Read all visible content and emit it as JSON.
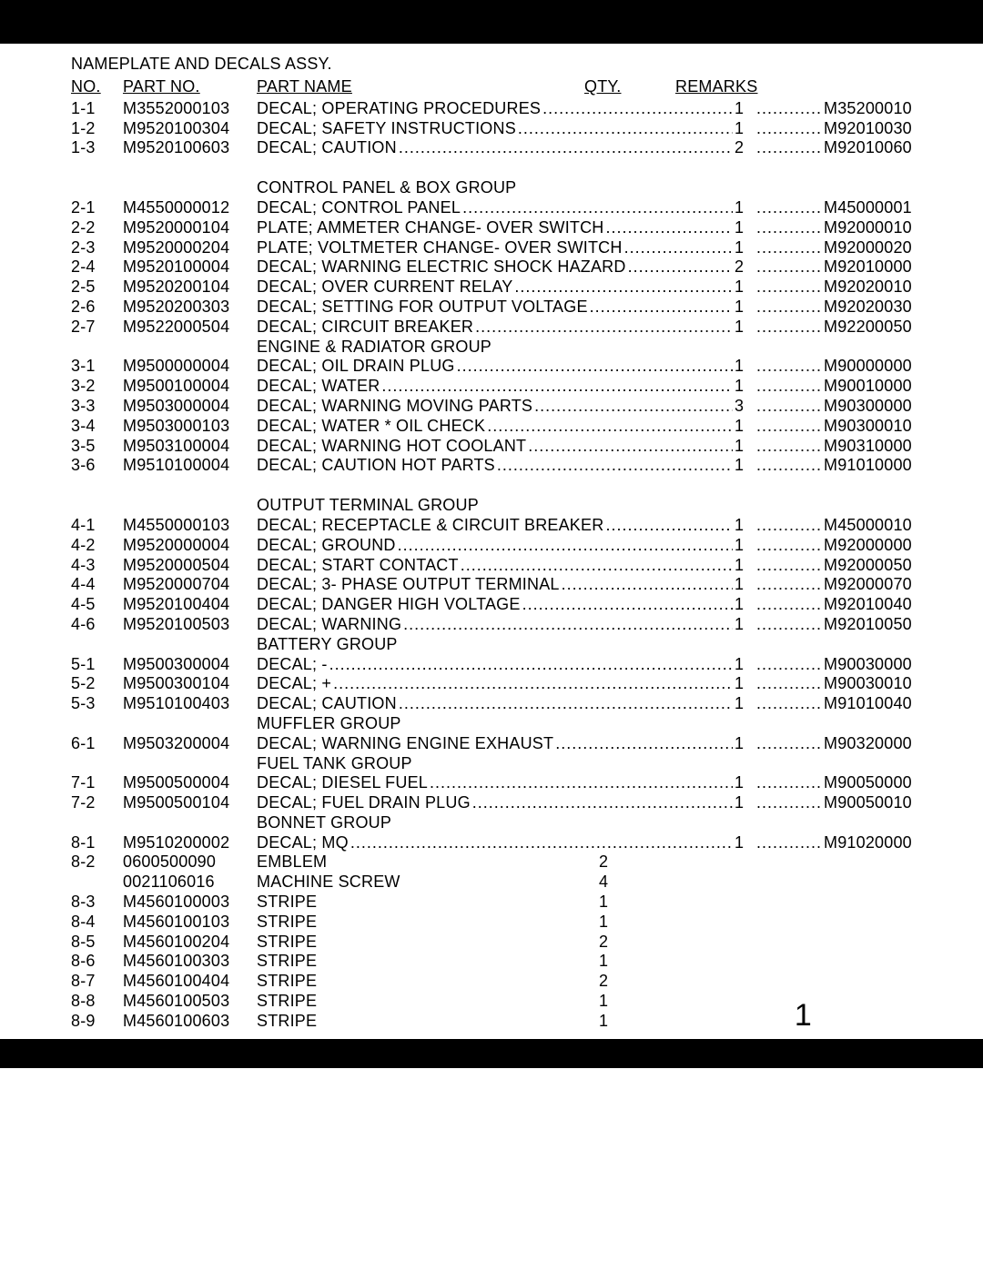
{
  "page_number": "1",
  "assembly_title": "NAMEPLATE AND DECALS ASSY.",
  "headers": {
    "no": "NO.",
    "part_no": "PART NO.",
    "part_name": "PART NAME",
    "qty": "QTY.",
    "remarks": "REMARKS"
  },
  "dot_fill": "...........................................................................................................",
  "sections": [
    {
      "group_title": null,
      "rows": [
        {
          "no": "1-1",
          "part": "M3552000103",
          "name": "DECAL; OPERATING PROCEDURES",
          "qty": "1",
          "remarks": "M35200010"
        },
        {
          "no": "1-2",
          "part": "M9520100304",
          "name": "DECAL; SAFETY INSTRUCTIONS",
          "qty": "1",
          "remarks": "M92010030"
        },
        {
          "no": "1-3",
          "part": "M9520100603",
          "name": "DECAL; CAUTION",
          "qty": "2",
          "remarks": "M92010060"
        }
      ],
      "trailing_space": true
    },
    {
      "group_title": "CONTROL PANEL & BOX GROUP",
      "rows": [
        {
          "no": "2-1",
          "part": "M4550000012",
          "name": "DECAL; CONTROL PANEL",
          "qty": "1",
          "remarks": "M45000001"
        },
        {
          "no": "2-2",
          "part": "M9520000104",
          "name": "PLATE; AMMETER CHANGE- OVER SWITCH",
          "qty": "1",
          "remarks": "M92000010"
        },
        {
          "no": "2-3",
          "part": "M9520000204",
          "name": "PLATE; VOLTMETER CHANGE- OVER SWITCH",
          "qty": "1",
          "remarks": "M92000020"
        },
        {
          "no": "2-4",
          "part": "M9520100004",
          "name": "DECAL; WARNING ELECTRIC SHOCK HAZARD",
          "qty": "2",
          "remarks": "M92010000"
        },
        {
          "no": "2-5",
          "part": "M9520200104",
          "name": "DECAL; OVER CURRENT RELAY",
          "qty": "1",
          "remarks": "M92020010"
        },
        {
          "no": "2-6",
          "part": "M9520200303",
          "name": "DECAL; SETTING FOR OUTPUT VOLTAGE",
          "qty": "1",
          "remarks": "M92020030"
        },
        {
          "no": "2-7",
          "part": "M9522000504",
          "name": "DECAL; CIRCUIT BREAKER",
          "qty": "1",
          "remarks": "M92200050"
        }
      ]
    },
    {
      "group_title": "ENGINE & RADIATOR GROUP",
      "rows": [
        {
          "no": "3-1",
          "part": "M9500000004",
          "name": "DECAL; OIL DRAIN PLUG",
          "qty": "1",
          "remarks": "M90000000"
        },
        {
          "no": "3-2",
          "part": "M9500100004",
          "name": "DECAL; WATER",
          "qty": "1",
          "remarks": "M90010000"
        },
        {
          "no": "3-3",
          "part": "M9503000004",
          "name": "DECAL; WARNING MOVING PARTS",
          "qty": "3",
          "remarks": "M90300000"
        },
        {
          "no": "3-4",
          "part": "M9503000103",
          "name": "DECAL; WATER * OIL CHECK",
          "qty": "1",
          "remarks": "M90300010"
        },
        {
          "no": "3-5",
          "part": "M9503100004",
          "name": "DECAL; WARNING HOT COOLANT",
          "qty": "1",
          "remarks": "M90310000"
        },
        {
          "no": "3-6",
          "part": "M9510100004",
          "name": "DECAL; CAUTION HOT PARTS",
          "qty": "1",
          "remarks": "M91010000"
        }
      ],
      "trailing_space": true
    },
    {
      "group_title": "OUTPUT TERMINAL GROUP",
      "rows": [
        {
          "no": "4-1",
          "part": "M4550000103",
          "name": "DECAL; RECEPTACLE & CIRCUIT BREAKER",
          "qty": "1",
          "remarks": "M45000010"
        },
        {
          "no": "4-2",
          "part": "M9520000004",
          "name": "DECAL; GROUND",
          "qty": "1",
          "remarks": "M92000000"
        },
        {
          "no": "4-3",
          "part": "M9520000504",
          "name": "DECAL; START CONTACT",
          "qty": "1",
          "remarks": "M92000050"
        },
        {
          "no": "4-4",
          "part": "M9520000704",
          "name": "DECAL; 3- PHASE OUTPUT TERMINAL",
          "qty": "1",
          "remarks": "M92000070"
        },
        {
          "no": "4-5",
          "part": "M9520100404",
          "name": "DECAL; DANGER HIGH VOLTAGE",
          "qty": "1",
          "remarks": "M92010040"
        },
        {
          "no": "4-6",
          "part": "M9520100503",
          "name": "DECAL; WARNING",
          "qty": "1",
          "remarks": "M92010050"
        }
      ]
    },
    {
      "group_title": "BATTERY GROUP",
      "rows": [
        {
          "no": "5-1",
          "part": "M9500300004",
          "name": "DECAL; -",
          "qty": "1",
          "remarks": "M90030000"
        },
        {
          "no": "5-2",
          "part": "M9500300104",
          "name": "DECAL; +",
          "qty": "1",
          "remarks": "M90030010"
        },
        {
          "no": "5-3",
          "part": "M9510100403",
          "name": "DECAL; CAUTION",
          "qty": "1",
          "remarks": "M91010040"
        }
      ]
    },
    {
      "group_title": "MUFFLER GROUP",
      "rows": [
        {
          "no": "6-1",
          "part": "M9503200004",
          "name": "DECAL; WARNING ENGINE EXHAUST",
          "qty": "1",
          "remarks": "M90320000"
        }
      ]
    },
    {
      "group_title": "FUEL TANK GROUP",
      "rows": [
        {
          "no": "7-1",
          "part": "M9500500004",
          "name": "DECAL; DIESEL FUEL",
          "qty": "1",
          "remarks": "M90050000"
        },
        {
          "no": "7-2",
          "part": "M9500500104",
          "name": "DECAL; FUEL DRAIN PLUG",
          "qty": "1",
          "remarks": "M90050010"
        }
      ]
    },
    {
      "group_title": "BONNET GROUP",
      "rows": [
        {
          "no": "8-1",
          "part": "M9510200002",
          "name": "DECAL; MQ",
          "qty": "1",
          "remarks": "M91020000"
        },
        {
          "no": "8-2",
          "part": "0600500090",
          "name": "EMBLEM",
          "qty": "2",
          "remarks": "",
          "plain": true
        },
        {
          "no": "",
          "part": "0021106016",
          "name": "MACHINE SCREW",
          "qty": "4",
          "remarks": "",
          "plain": true
        },
        {
          "no": "8-3",
          "part": "M4560100003",
          "name": "STRIPE",
          "qty": "1",
          "remarks": "",
          "plain": true
        },
        {
          "no": "8-4",
          "part": "M4560100103",
          "name": "STRIPE",
          "qty": "1",
          "remarks": "",
          "plain": true
        },
        {
          "no": "8-5",
          "part": "M4560100204",
          "name": "STRIPE",
          "qty": "2",
          "remarks": "",
          "plain": true
        },
        {
          "no": "8-6",
          "part": "M4560100303",
          "name": "STRIPE",
          "qty": "1",
          "remarks": "",
          "plain": true
        },
        {
          "no": "8-7",
          "part": "M4560100404",
          "name": "STRIPE",
          "qty": "2",
          "remarks": "",
          "plain": true
        },
        {
          "no": "8-8",
          "part": "M4560100503",
          "name": "STRIPE",
          "qty": "1",
          "remarks": "",
          "plain": true
        },
        {
          "no": "8-9",
          "part": "M4560100603",
          "name": "STRIPE",
          "qty": "1",
          "remarks": "",
          "plain": true
        }
      ]
    }
  ]
}
